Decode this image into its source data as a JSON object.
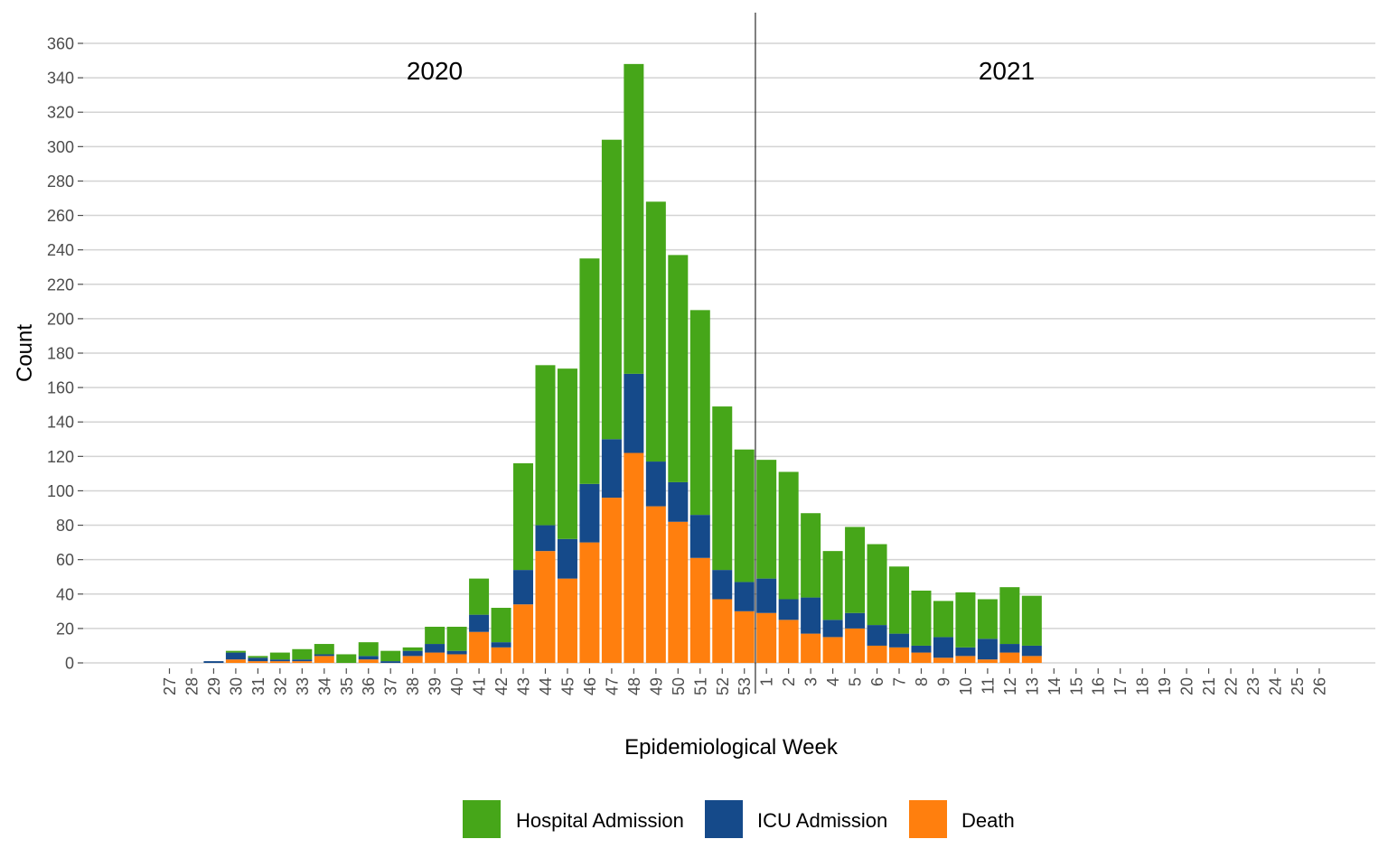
{
  "chart_data": {
    "type": "bar",
    "stacked": true,
    "title": "",
    "xlabel": "Epidemiological Week",
    "ylabel": "Count",
    "ylim": [
      0,
      360
    ],
    "yticks": [
      0,
      20,
      40,
      60,
      80,
      100,
      120,
      140,
      160,
      180,
      200,
      220,
      240,
      260,
      280,
      300,
      320,
      340,
      360
    ],
    "grid": "horizontal",
    "legend_position": "bottom",
    "categories": [
      "27",
      "28",
      "29",
      "30",
      "31",
      "32",
      "33",
      "34",
      "35",
      "36",
      "37",
      "38",
      "39",
      "40",
      "41",
      "42",
      "43",
      "44",
      "45",
      "46",
      "47",
      "48",
      "49",
      "50",
      "51",
      "52",
      "53",
      "1",
      "2",
      "3",
      "4",
      "5",
      "6",
      "7",
      "8",
      "9",
      "10",
      "11",
      "12",
      "13",
      "14",
      "15",
      "16",
      "17",
      "18",
      "19",
      "20",
      "21",
      "22",
      "23",
      "24",
      "25",
      "26"
    ],
    "annotations": [
      {
        "text": "2020",
        "period": "2020"
      },
      {
        "text": "2021",
        "period": "2021"
      }
    ],
    "divider_after_category": "53",
    "series": [
      {
        "name": "Death",
        "color": "#FF7F0E",
        "values": [
          0,
          0,
          0,
          2,
          1,
          1,
          1,
          4,
          0,
          2,
          0,
          4,
          6,
          5,
          18,
          9,
          34,
          65,
          49,
          70,
          96,
          122,
          91,
          82,
          61,
          37,
          30,
          29,
          25,
          17,
          15,
          20,
          10,
          9,
          6,
          3,
          4,
          2,
          6,
          4,
          0,
          0,
          0,
          0,
          0,
          0,
          0,
          0,
          0,
          0,
          0,
          0,
          0
        ]
      },
      {
        "name": "ICU Admission",
        "color": "#154A8A",
        "values": [
          0,
          0,
          1,
          4,
          2,
          1,
          1,
          1,
          0,
          2,
          1,
          3,
          5,
          2,
          10,
          3,
          20,
          15,
          23,
          34,
          34,
          46,
          26,
          23,
          25,
          17,
          17,
          20,
          12,
          21,
          10,
          9,
          12,
          8,
          4,
          12,
          5,
          12,
          5,
          6,
          0,
          0,
          0,
          0,
          0,
          0,
          0,
          0,
          0,
          0,
          0,
          0,
          0
        ]
      },
      {
        "name": "Hospital Admission",
        "color": "#46A619",
        "values": [
          0,
          0,
          0,
          1,
          1,
          4,
          6,
          6,
          5,
          8,
          6,
          2,
          10,
          14,
          21,
          20,
          62,
          93,
          99,
          131,
          174,
          180,
          151,
          132,
          119,
          95,
          77,
          69,
          74,
          49,
          40,
          50,
          47,
          39,
          32,
          21,
          32,
          23,
          33,
          29,
          0,
          0,
          0,
          0,
          0,
          0,
          0,
          0,
          0,
          0,
          0,
          0,
          0
        ]
      }
    ],
    "legend_order": [
      "Hospital Admission",
      "ICU Admission",
      "Death"
    ]
  }
}
